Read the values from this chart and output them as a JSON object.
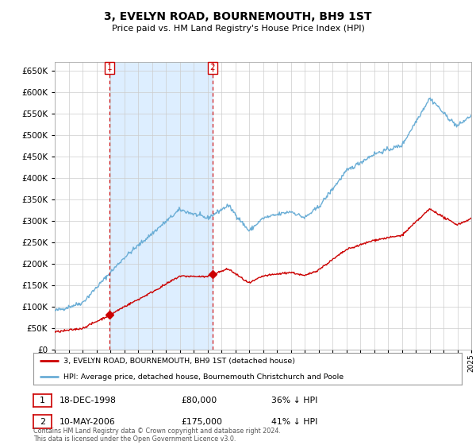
{
  "title": "3, EVELYN ROAD, BOURNEMOUTH, BH9 1ST",
  "subtitle": "Price paid vs. HM Land Registry's House Price Index (HPI)",
  "property_label": "3, EVELYN ROAD, BOURNEMOUTH, BH9 1ST (detached house)",
  "hpi_label": "HPI: Average price, detached house, Bournemouth Christchurch and Poole",
  "transaction1_label": "1",
  "transaction1_date": "18-DEC-1998",
  "transaction1_price": "£80,000",
  "transaction1_hpi": "36% ↓ HPI",
  "transaction2_label": "2",
  "transaction2_date": "10-MAY-2006",
  "transaction2_price": "£175,000",
  "transaction2_hpi": "41% ↓ HPI",
  "footer": "Contains HM Land Registry data © Crown copyright and database right 2024.\nThis data is licensed under the Open Government Licence v3.0.",
  "property_color": "#cc0000",
  "hpi_color": "#6baed6",
  "shade_color": "#ddeeff",
  "background_color": "#ffffff",
  "grid_color": "#cccccc",
  "ylim": [
    0,
    670000
  ],
  "yticks": [
    0,
    50000,
    100000,
    150000,
    200000,
    250000,
    300000,
    350000,
    400000,
    450000,
    500000,
    550000,
    600000,
    650000
  ],
  "transaction1_x": 1998.96,
  "transaction1_y": 80000,
  "transaction2_x": 2006.36,
  "transaction2_y": 175000,
  "xmin": 1995,
  "xmax": 2025
}
